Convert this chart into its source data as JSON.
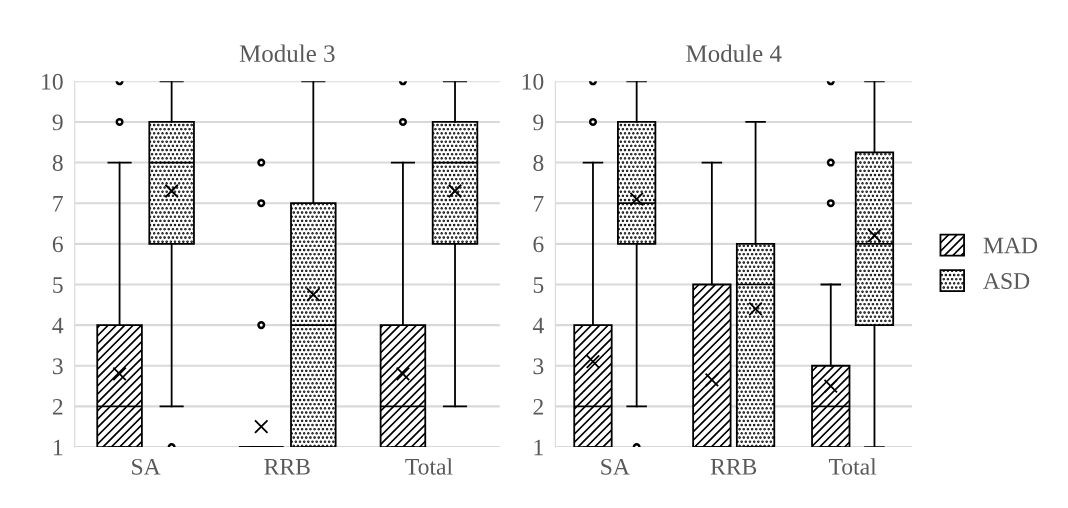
{
  "chart_data": [
    {
      "type": "box",
      "title": "Module 3",
      "categories": [
        "SA",
        "RRB",
        "Total"
      ],
      "ylim": [
        1,
        10
      ],
      "yticks": [
        1,
        2,
        3,
        4,
        5,
        6,
        7,
        8,
        9,
        10
      ],
      "grid": "y",
      "legend": "right",
      "marker": "cross",
      "series": [
        {
          "name": "MAD",
          "color": "#000000",
          "boxes": [
            {
              "low": 1,
              "q1": 1,
              "median": 2,
              "q3": 4,
              "high": 8,
              "mean": 2.8,
              "outliers": [
                9,
                10
              ]
            },
            {
              "low": 1,
              "q1": 1,
              "median": 1,
              "q3": 1,
              "high": 1,
              "mean": 1.5,
              "outliers": [
                4,
                7,
                8
              ]
            },
            {
              "low": 1,
              "q1": 1,
              "median": 2,
              "q3": 4,
              "high": 8,
              "mean": 2.8,
              "outliers": [
                9,
                10
              ]
            }
          ]
        },
        {
          "name": "ASD",
          "color": "#000000",
          "boxes": [
            {
              "low": 2,
              "q1": 6,
              "median": 8,
              "q3": 9,
              "high": 10,
              "mean": 7.3,
              "outliers": [
                1
              ]
            },
            {
              "low": 1,
              "q1": 1,
              "median": 4,
              "q3": 7,
              "high": 10,
              "mean": 4.75
            },
            {
              "low": 2,
              "q1": 6,
              "median": 8,
              "q3": 9,
              "high": 10,
              "mean": 7.3
            }
          ]
        }
      ]
    },
    {
      "type": "box",
      "title": "Module 4",
      "categories": [
        "SA",
        "RRB",
        "Total"
      ],
      "ylim": [
        1,
        10
      ],
      "yticks": [
        1,
        2,
        3,
        4,
        5,
        6,
        7,
        8,
        9,
        10
      ],
      "grid": "y",
      "legend": "right",
      "marker": "cross",
      "series": [
        {
          "name": "MAD",
          "color": "#000000",
          "boxes": [
            {
              "low": 1,
              "q1": 1,
              "median": 2,
              "q3": 4,
              "high": 8,
              "mean": 3.1,
              "outliers": [
                9,
                10
              ]
            },
            {
              "low": 1,
              "q1": 1,
              "median": 1,
              "q3": 5,
              "high": 8,
              "mean": 2.65
            },
            {
              "low": 1,
              "q1": 1,
              "median": 2,
              "q3": 3,
              "high": 5,
              "mean": 2.5,
              "outliers": [
                7,
                8,
                10
              ]
            }
          ]
        },
        {
          "name": "ASD",
          "color": "#000000",
          "boxes": [
            {
              "low": 2,
              "q1": 6,
              "median": 7,
              "q3": 9,
              "high": 10,
              "mean": 7.1,
              "outliers": [
                1
              ]
            },
            {
              "low": 1,
              "q1": 1,
              "median": 5,
              "q3": 6,
              "high": 9,
              "mean": 4.4
            },
            {
              "low": 1,
              "q1": 4,
              "median": 6,
              "q3": 8.25,
              "high": 10,
              "mean": 6.2
            }
          ]
        }
      ]
    }
  ]
}
